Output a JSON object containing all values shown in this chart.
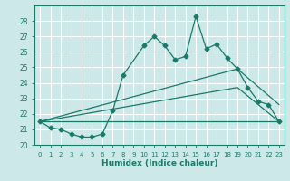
{
  "xlabel": "Humidex (Indice chaleur)",
  "bg_color": "#cce8e8",
  "grid_color": "#ffffff",
  "line_color": "#1a7a6a",
  "xlim": [
    -0.5,
    23.5
  ],
  "ylim": [
    20,
    29
  ],
  "yticks": [
    20,
    21,
    22,
    23,
    24,
    25,
    26,
    27,
    28
  ],
  "xticks": [
    0,
    1,
    2,
    3,
    4,
    5,
    6,
    7,
    8,
    9,
    10,
    11,
    12,
    13,
    14,
    15,
    16,
    17,
    18,
    19,
    20,
    21,
    22,
    23
  ],
  "series1_x": [
    0,
    1,
    2,
    3,
    4,
    5,
    6,
    7,
    8,
    10,
    11,
    12,
    13,
    14,
    15,
    16,
    17,
    18,
    19,
    20,
    21,
    22,
    23
  ],
  "series1_y": [
    21.5,
    21.1,
    21.0,
    20.7,
    20.5,
    20.5,
    20.7,
    22.2,
    24.5,
    26.4,
    27.0,
    26.4,
    25.5,
    25.7,
    28.3,
    26.2,
    26.5,
    25.6,
    24.9,
    23.7,
    22.8,
    22.6,
    21.5
  ],
  "series2_x": [
    0,
    23
  ],
  "series2_y": [
    21.5,
    21.5
  ],
  "series3_x": [
    0,
    19,
    23
  ],
  "series3_y": [
    21.5,
    24.9,
    22.6
  ],
  "series4_x": [
    0,
    19,
    23
  ],
  "series4_y": [
    21.5,
    23.7,
    21.5
  ]
}
